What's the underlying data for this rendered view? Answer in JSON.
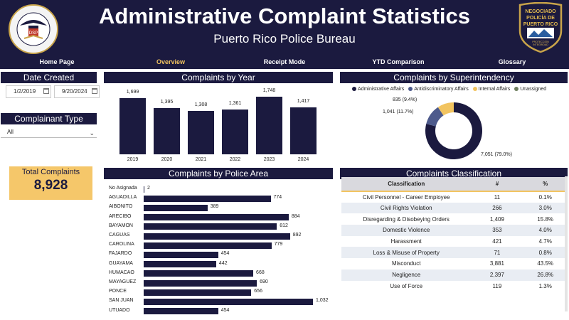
{
  "header": {
    "title": "Administrative Complaint Statistics",
    "subtitle": "Puerto Rico Police Bureau",
    "left_logo_text": "DEPARTAMENTO DE SEGURIDAD PÚBLICA · PUERTO RICO",
    "left_logo_initials": "DSP",
    "right_logo_text": [
      "NEGOCIADO",
      "POLICÍA DE",
      "PUERTO RICO"
    ],
    "right_logo_motto": [
      "PROTECCIÓN",
      "INTEGRIDAD"
    ]
  },
  "nav": [
    "Home Page",
    "Overview",
    "Receipt Mode",
    "YTD Comparison",
    "Glossary"
  ],
  "nav_active": "Overview",
  "filters": {
    "date_title": "Date Created",
    "date_start": "1/2/2019",
    "date_end": "9/20/2024",
    "type_title": "Complainant Type",
    "type_value": "All"
  },
  "kpi": {
    "label": "Total Complaints",
    "value": "8,928"
  },
  "chart_data": [
    {
      "type": "bar",
      "title": "Complaints by Year",
      "categories": [
        "2019",
        "2020",
        "2021",
        "2022",
        "2023",
        "2024"
      ],
      "values": [
        1699,
        1395,
        1308,
        1361,
        1748,
        1417
      ],
      "labels": [
        "1,699",
        "1,395",
        "1,308",
        "1,361",
        "1,748",
        "1,417"
      ]
    },
    {
      "type": "pie",
      "title": "Complaints by Superintendency",
      "categories": [
        "Administrative Affairs",
        "Antidiscriminatory Affairs",
        "Internal Affairs",
        "Unassigned"
      ],
      "values": [
        7051,
        1041,
        835,
        1
      ],
      "labels": [
        "7,051 (79.0%)",
        "1,041 (11.7%)",
        "835 (9.4%)",
        ""
      ],
      "legend": "top"
    },
    {
      "type": "bar",
      "title": "Complaints by Police Area",
      "categories": [
        "No Asignada",
        "AGUADILLA",
        "AIBONITO",
        "ARECIBO",
        "BAYAMON",
        "CAGUAS",
        "CAROLINA",
        "FAJARDO",
        "GUAYAMA",
        "HUMACAO",
        "MAYAGUEZ",
        "PONCE",
        "SAN JUAN",
        "UTUADO"
      ],
      "values": [
        2,
        774,
        389,
        884,
        812,
        892,
        779,
        454,
        442,
        668,
        690,
        656,
        1032,
        454
      ],
      "labels": [
        "2",
        "774",
        "389",
        "884",
        "812",
        "892",
        "779",
        "454",
        "442",
        "668",
        "690",
        "656",
        "1,032",
        "454"
      ]
    },
    {
      "type": "table",
      "title": "Complaints Classification",
      "columns": [
        "Classification",
        "#",
        "%"
      ],
      "rows": [
        [
          "Civil Personnel - Career Employee",
          "11",
          "0.1%"
        ],
        [
          "Civil Rights Violation",
          "266",
          "3.0%"
        ],
        [
          "Disregarding & Disobeying Orders",
          "1,409",
          "15.8%"
        ],
        [
          "Domestic Violence",
          "353",
          "4.0%"
        ],
        [
          "Harassment",
          "421",
          "4.7%"
        ],
        [
          "Loss & Misuse of Property",
          "71",
          "0.8%"
        ],
        [
          "Misconduct",
          "3,881",
          "43.5%"
        ],
        [
          "Negligence",
          "2,397",
          "26.8%"
        ],
        [
          "Use of Force",
          "119",
          "1.3%"
        ]
      ]
    }
  ],
  "colors": {
    "navy": "#1b1a3f",
    "gold": "#f2c460",
    "antidiscriminatory": "#4d5a8c",
    "unassigned": "#6f7f5f"
  }
}
